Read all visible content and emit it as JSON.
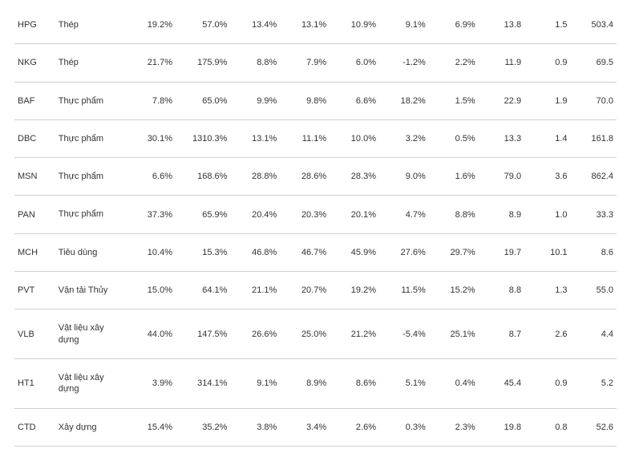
{
  "table": {
    "background_color": "#ffffff",
    "border_color": "#d0d0d0",
    "text_color": "#333333",
    "font_size": 11,
    "rows": [
      {
        "ticker": "HPG",
        "sector": "Thép",
        "c0": "19.2%",
        "c1": "57.0%",
        "c2": "13.4%",
        "c3": "13.1%",
        "c4": "10.9%",
        "c5": "9.1%",
        "c6": "6.9%",
        "c7": "13.8",
        "c8": "1.5",
        "c9": "503.4"
      },
      {
        "ticker": "NKG",
        "sector": "Thép",
        "c0": "21.7%",
        "c1": "175.9%",
        "c2": "8.8%",
        "c3": "7.9%",
        "c4": "6.0%",
        "c5": "-1.2%",
        "c6": "2.2%",
        "c7": "11.9",
        "c8": "0.9",
        "c9": "69.5"
      },
      {
        "ticker": "BAF",
        "sector": "Thực phẩm",
        "c0": "7.8%",
        "c1": "65.0%",
        "c2": "9.9%",
        "c3": "9.8%",
        "c4": "6.6%",
        "c5": "18.2%",
        "c6": "1.5%",
        "c7": "22.9",
        "c8": "1.9",
        "c9": "70.0"
      },
      {
        "ticker": "DBC",
        "sector": "Thực phẩm",
        "c0": "30.1%",
        "c1": "1310.3%",
        "c2": "13.1%",
        "c3": "11.1%",
        "c4": "10.0%",
        "c5": "3.2%",
        "c6": "0.5%",
        "c7": "13.3",
        "c8": "1.4",
        "c9": "161.8"
      },
      {
        "ticker": "MSN",
        "sector": "Thực phẩm",
        "c0": "6.6%",
        "c1": "168.6%",
        "c2": "28.8%",
        "c3": "28.6%",
        "c4": "28.3%",
        "c5": "9.0%",
        "c6": "1.6%",
        "c7": "79.0",
        "c8": "3.6",
        "c9": "862.4"
      },
      {
        "ticker": "PAN",
        "sector": "Thực phẩm",
        "c0": "37.3%",
        "c1": "65.9%",
        "c2": "20.4%",
        "c3": "20.3%",
        "c4": "20.1%",
        "c5": "4.7%",
        "c6": "8.8%",
        "c7": "8.9",
        "c8": "1.0",
        "c9": "33.3"
      },
      {
        "ticker": "MCH",
        "sector": "Tiêu dùng",
        "c0": "10.4%",
        "c1": "15.3%",
        "c2": "46.8%",
        "c3": "46.7%",
        "c4": "45.9%",
        "c5": "27.6%",
        "c6": "29.7%",
        "c7": "19.7",
        "c8": "10.1",
        "c9": "8.6"
      },
      {
        "ticker": "PVT",
        "sector": "Vận tải Thủy",
        "c0": "15.0%",
        "c1": "64.1%",
        "c2": "21.1%",
        "c3": "20.7%",
        "c4": "19.2%",
        "c5": "11.5%",
        "c6": "15.2%",
        "c7": "8.8",
        "c8": "1.3",
        "c9": "55.0"
      },
      {
        "ticker": "VLB",
        "sector": "Vật liệu xây dựng",
        "c0": "44.0%",
        "c1": "147.5%",
        "c2": "26.6%",
        "c3": "25.0%",
        "c4": "21.2%",
        "c5": "-5.4%",
        "c6": "25.1%",
        "c7": "8.7",
        "c8": "2.6",
        "c9": "4.4"
      },
      {
        "ticker": "HT1",
        "sector": "Vật liệu xây dựng",
        "c0": "3.9%",
        "c1": "314.1%",
        "c2": "9.1%",
        "c3": "8.9%",
        "c4": "8.6%",
        "c5": "5.1%",
        "c6": "0.4%",
        "c7": "45.4",
        "c8": "0.9",
        "c9": "5.2"
      },
      {
        "ticker": "CTD",
        "sector": "Xây dựng",
        "c0": "15.4%",
        "c1": "35.2%",
        "c2": "3.8%",
        "c3": "3.4%",
        "c4": "2.6%",
        "c5": "0.3%",
        "c6": "2.3%",
        "c7": "19.8",
        "c8": "0.8",
        "c9": "52.6"
      }
    ]
  }
}
